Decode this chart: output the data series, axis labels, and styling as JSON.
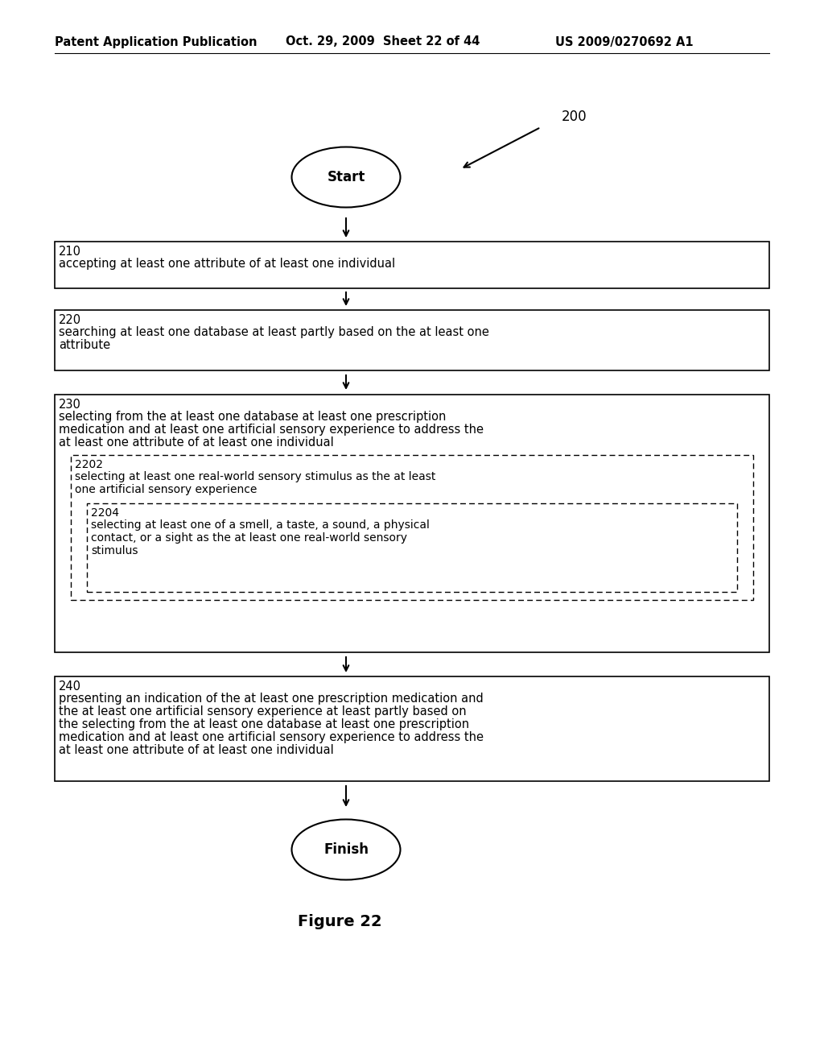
{
  "bg_color": "#ffffff",
  "header_left": "Patent Application Publication",
  "header_mid": "Oct. 29, 2009  Sheet 22 of 44",
  "header_right": "US 2009/0270692 A1",
  "label_200": "200",
  "start_text": "Start",
  "finish_text": "Finish",
  "figure_label": "Figure 22",
  "box210_label": "210",
  "box210_text": "accepting at least one attribute of at least one individual",
  "box220_label": "220",
  "box220_line1": "searching at least one database at least partly based on the at least one",
  "box220_line2": "attribute",
  "box230_label": "230",
  "box230_line1": "selecting from the at least one database at least one prescription",
  "box230_line2": "medication and at least one artificial sensory experience to address the",
  "box230_line3": "at least one attribute of at least one individual",
  "box2202_label": "2202",
  "box2202_line1": "selecting at least one real-world sensory stimulus as the at least",
  "box2202_line2": "one artificial sensory experience",
  "box2204_label": "2204",
  "box2204_line1": "selecting at least one of a smell, a taste, a sound, a physical",
  "box2204_line2": "contact, or a sight as the at least one real-world sensory",
  "box2204_line3": "stimulus",
  "box240_label": "240",
  "box240_line1": "presenting an indication of the at least one prescription medication and",
  "box240_line2": "the at least one artificial sensory experience at least partly based on",
  "box240_line3": "the selecting from the at least one database at least one prescription",
  "box240_line4": "medication and at least one artificial sensory experience to address the",
  "box240_line5": "at least one attribute of at least one individual",
  "font_family": "DejaVu Sans",
  "header_fontsize": 10.5,
  "label_fontsize": 10.5,
  "body_fontsize": 10.5,
  "small_fontsize": 10.0,
  "figure_fontsize": 14
}
